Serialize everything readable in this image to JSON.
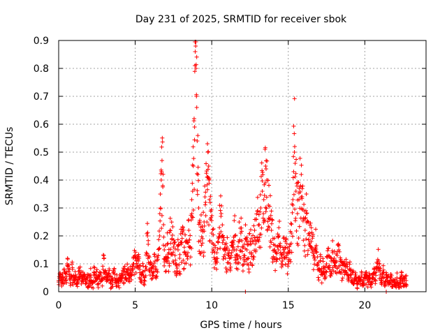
{
  "chart_data": {
    "type": "scatter",
    "title": "Day 231 of 2025, SRMTID for receiver sbok",
    "xlabel": "GPS time / hours",
    "ylabel": "SRMTID / TECUs",
    "xlim": [
      0,
      24
    ],
    "ylim": [
      0,
      0.9
    ],
    "xticks": [
      0,
      5,
      10,
      15,
      20
    ],
    "yticks": [
      0,
      0.1,
      0.2,
      0.3,
      0.4,
      0.5,
      0.6,
      0.7,
      0.8,
      0.9
    ],
    "grid": true,
    "marker": "+",
    "color": "#ff0000",
    "series": [
      {
        "name": "SRMTID",
        "points": [
          [
            0.0,
            0.04
          ],
          [
            0.1,
            0.06
          ],
          [
            0.2,
            0.03
          ],
          [
            0.3,
            0.05
          ],
          [
            0.4,
            0.07
          ],
          [
            0.5,
            0.04
          ],
          [
            0.55,
            0.1
          ],
          [
            0.6,
            0.09
          ],
          [
            0.7,
            0.06
          ],
          [
            0.8,
            0.05
          ],
          [
            0.9,
            0.08
          ],
          [
            1.0,
            0.04
          ],
          [
            1.1,
            0.06
          ],
          [
            1.2,
            0.03
          ],
          [
            1.3,
            0.05
          ],
          [
            1.4,
            0.07
          ],
          [
            1.5,
            0.04
          ],
          [
            1.6,
            0.05
          ],
          [
            1.7,
            0.06
          ],
          [
            1.8,
            0.03
          ],
          [
            1.9,
            0.05
          ],
          [
            2.0,
            0.04
          ],
          [
            2.1,
            0.06
          ],
          [
            2.2,
            0.03
          ],
          [
            2.3,
            0.07
          ],
          [
            2.4,
            0.04
          ],
          [
            2.5,
            0.05
          ],
          [
            2.6,
            0.03
          ],
          [
            2.7,
            0.06
          ],
          [
            2.8,
            0.04
          ],
          [
            2.9,
            0.08
          ],
          [
            2.95,
            0.13
          ],
          [
            3.0,
            0.05
          ],
          [
            3.1,
            0.07
          ],
          [
            3.2,
            0.04
          ],
          [
            3.3,
            0.06
          ],
          [
            3.4,
            0.03
          ],
          [
            3.5,
            0.05
          ],
          [
            3.6,
            0.07
          ],
          [
            3.7,
            0.04
          ],
          [
            3.8,
            0.06
          ],
          [
            3.9,
            0.03
          ],
          [
            4.0,
            0.05
          ],
          [
            4.1,
            0.04
          ],
          [
            4.2,
            0.06
          ],
          [
            4.3,
            0.07
          ],
          [
            4.4,
            0.05
          ],
          [
            4.5,
            0.08
          ],
          [
            4.6,
            0.06
          ],
          [
            4.7,
            0.09
          ],
          [
            4.8,
            0.07
          ],
          [
            4.9,
            0.1
          ],
          [
            5.0,
            0.12
          ],
          [
            5.1,
            0.09
          ],
          [
            5.2,
            0.11
          ],
          [
            5.3,
            0.08
          ],
          [
            5.4,
            0.06
          ],
          [
            5.5,
            0.07
          ],
          [
            5.6,
            0.05
          ],
          [
            5.7,
            0.09
          ],
          [
            5.8,
            0.2
          ],
          [
            5.85,
            0.17
          ],
          [
            5.9,
            0.08
          ],
          [
            6.0,
            0.1
          ],
          [
            6.1,
            0.07
          ],
          [
            6.2,
            0.09
          ],
          [
            6.3,
            0.11
          ],
          [
            6.4,
            0.08
          ],
          [
            6.5,
            0.13
          ],
          [
            6.6,
            0.2
          ],
          [
            6.65,
            0.3
          ],
          [
            6.7,
            0.4
          ],
          [
            6.75,
            0.47
          ],
          [
            6.8,
            0.38
          ],
          [
            6.85,
            0.24
          ],
          [
            6.9,
            0.15
          ],
          [
            7.0,
            0.12
          ],
          [
            7.1,
            0.17
          ],
          [
            7.2,
            0.14
          ],
          [
            7.3,
            0.22
          ],
          [
            7.4,
            0.19
          ],
          [
            7.5,
            0.16
          ],
          [
            7.6,
            0.13
          ],
          [
            7.7,
            0.1
          ],
          [
            7.8,
            0.15
          ],
          [
            7.9,
            0.12
          ],
          [
            8.0,
            0.17
          ],
          [
            8.1,
            0.21
          ],
          [
            8.2,
            0.14
          ],
          [
            8.3,
            0.18
          ],
          [
            8.4,
            0.13
          ],
          [
            8.5,
            0.22
          ],
          [
            8.6,
            0.16
          ],
          [
            8.7,
            0.28
          ],
          [
            8.75,
            0.36
          ],
          [
            8.8,
            0.45
          ],
          [
            8.85,
            0.62
          ],
          [
            8.9,
            0.81
          ],
          [
            8.95,
            0.88
          ],
          [
            9.0,
            0.7
          ],
          [
            9.05,
            0.54
          ],
          [
            9.1,
            0.42
          ],
          [
            9.15,
            0.3
          ],
          [
            9.2,
            0.25
          ],
          [
            9.3,
            0.22
          ],
          [
            9.4,
            0.19
          ],
          [
            9.5,
            0.25
          ],
          [
            9.6,
            0.32
          ],
          [
            9.7,
            0.41
          ],
          [
            9.75,
            0.5
          ],
          [
            9.8,
            0.45
          ],
          [
            9.85,
            0.33
          ],
          [
            9.9,
            0.26
          ],
          [
            10.0,
            0.21
          ],
          [
            10.1,
            0.17
          ],
          [
            10.2,
            0.14
          ],
          [
            10.3,
            0.12
          ],
          [
            10.4,
            0.18
          ],
          [
            10.5,
            0.23
          ],
          [
            10.6,
            0.27
          ],
          [
            10.7,
            0.2
          ],
          [
            10.8,
            0.15
          ],
          [
            10.9,
            0.12
          ],
          [
            11.0,
            0.16
          ],
          [
            11.1,
            0.13
          ],
          [
            11.2,
            0.1
          ],
          [
            11.3,
            0.14
          ],
          [
            11.4,
            0.17
          ],
          [
            11.5,
            0.2
          ],
          [
            11.6,
            0.15
          ],
          [
            11.7,
            0.12
          ],
          [
            11.8,
            0.18
          ],
          [
            11.9,
            0.21
          ],
          [
            12.0,
            0.16
          ],
          [
            12.1,
            0.13
          ],
          [
            12.2,
            0.19
          ],
          [
            12.3,
            0.15
          ],
          [
            12.4,
            0.12
          ],
          [
            12.5,
            0.17
          ],
          [
            12.6,
            0.14
          ],
          [
            12.7,
            0.18
          ],
          [
            12.8,
            0.22
          ],
          [
            12.9,
            0.26
          ],
          [
            13.0,
            0.29
          ],
          [
            13.1,
            0.24
          ],
          [
            13.2,
            0.3
          ],
          [
            13.3,
            0.36
          ],
          [
            13.4,
            0.33
          ],
          [
            13.5,
            0.39
          ],
          [
            13.55,
            0.44
          ],
          [
            13.6,
            0.4
          ],
          [
            13.7,
            0.31
          ],
          [
            13.8,
            0.26
          ],
          [
            13.9,
            0.22
          ],
          [
            14.0,
            0.19
          ],
          [
            14.1,
            0.15
          ],
          [
            14.2,
            0.12
          ],
          [
            14.3,
            0.16
          ],
          [
            14.4,
            0.2
          ],
          [
            14.5,
            0.14
          ],
          [
            14.6,
            0.11
          ],
          [
            14.7,
            0.15
          ],
          [
            14.8,
            0.18
          ],
          [
            14.9,
            0.13
          ],
          [
            15.0,
            0.1
          ],
          [
            15.1,
            0.14
          ],
          [
            15.2,
            0.21
          ],
          [
            15.3,
            0.33
          ],
          [
            15.35,
            0.43
          ],
          [
            15.4,
            0.5
          ],
          [
            15.45,
            0.46
          ],
          [
            15.5,
            0.36
          ],
          [
            15.6,
            0.28
          ],
          [
            15.7,
            0.33
          ],
          [
            15.8,
            0.38
          ],
          [
            15.85,
            0.42
          ],
          [
            15.9,
            0.34
          ],
          [
            16.0,
            0.26
          ],
          [
            16.1,
            0.22
          ],
          [
            16.2,
            0.28
          ],
          [
            16.3,
            0.25
          ],
          [
            16.4,
            0.21
          ],
          [
            16.5,
            0.18
          ],
          [
            16.6,
            0.15
          ],
          [
            16.7,
            0.12
          ],
          [
            16.8,
            0.16
          ],
          [
            16.9,
            0.1
          ],
          [
            17.0,
            0.08
          ],
          [
            17.1,
            0.11
          ],
          [
            17.2,
            0.07
          ],
          [
            17.3,
            0.09
          ],
          [
            17.4,
            0.06
          ],
          [
            17.5,
            0.1
          ],
          [
            17.6,
            0.13
          ],
          [
            17.7,
            0.08
          ],
          [
            17.8,
            0.11
          ],
          [
            17.9,
            0.14
          ],
          [
            18.0,
            0.12
          ],
          [
            18.1,
            0.09
          ],
          [
            18.2,
            0.13
          ],
          [
            18.3,
            0.15
          ],
          [
            18.4,
            0.11
          ],
          [
            18.5,
            0.08
          ],
          [
            18.6,
            0.1
          ],
          [
            18.7,
            0.07
          ],
          [
            18.8,
            0.09
          ],
          [
            18.9,
            0.06
          ],
          [
            19.0,
            0.08
          ],
          [
            19.1,
            0.05
          ],
          [
            19.2,
            0.07
          ],
          [
            19.3,
            0.04
          ],
          [
            19.4,
            0.06
          ],
          [
            19.5,
            0.03
          ],
          [
            19.6,
            0.05
          ],
          [
            19.7,
            0.04
          ],
          [
            19.8,
            0.06
          ],
          [
            19.9,
            0.03
          ],
          [
            20.0,
            0.05
          ],
          [
            20.1,
            0.07
          ],
          [
            20.2,
            0.04
          ],
          [
            20.3,
            0.06
          ],
          [
            20.4,
            0.03
          ],
          [
            20.5,
            0.05
          ],
          [
            20.6,
            0.08
          ],
          [
            20.7,
            0.04
          ],
          [
            20.8,
            0.09
          ],
          [
            20.9,
            0.11
          ],
          [
            21.0,
            0.06
          ],
          [
            21.1,
            0.04
          ],
          [
            21.2,
            0.07
          ],
          [
            21.3,
            0.03
          ],
          [
            21.4,
            0.05
          ],
          [
            21.5,
            0.04
          ],
          [
            21.6,
            0.03
          ],
          [
            21.7,
            0.05
          ],
          [
            21.8,
            0.02
          ],
          [
            21.9,
            0.04
          ],
          [
            22.0,
            0.03
          ],
          [
            22.1,
            0.05
          ],
          [
            22.2,
            0.02
          ],
          [
            22.3,
            0.04
          ],
          [
            22.4,
            0.06
          ],
          [
            22.5,
            0.03
          ],
          [
            22.6,
            0.05
          ],
          [
            22.7,
            0.04
          ],
          [
            8.92,
            0.86
          ],
          [
            9.02,
            0.66
          ],
          [
            8.97,
            0.8
          ],
          [
            8.88,
            0.59
          ],
          [
            6.72,
            0.43
          ],
          [
            15.42,
            0.52
          ],
          [
            13.52,
            0.45
          ],
          [
            9.72,
            0.53
          ],
          [
            9.82,
            0.4
          ],
          [
            12.2,
            0.0
          ],
          [
            21.4,
            0.0
          ]
        ]
      }
    ]
  }
}
